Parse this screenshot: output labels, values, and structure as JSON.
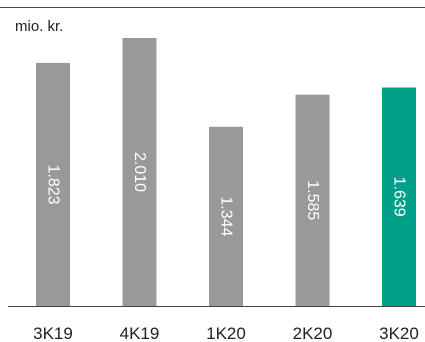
{
  "chart_data": {
    "type": "bar",
    "unit_label": "mio. kr.",
    "categories": [
      "3K19",
      "4K19",
      "1K20",
      "2K20",
      "3K20"
    ],
    "values": [
      1.823,
      2.01,
      1.344,
      1.585,
      1.639
    ],
    "value_labels": [
      "1.823",
      "2.010",
      "1.344",
      "1.585",
      "1.639"
    ],
    "ylim": [
      0,
      2.1
    ],
    "grid": false,
    "colors": {
      "default_bar": "#999999",
      "highlight_bar": "#00a088",
      "axis": "#444444",
      "top_rule": "#444444"
    },
    "highlight_index": 4
  }
}
